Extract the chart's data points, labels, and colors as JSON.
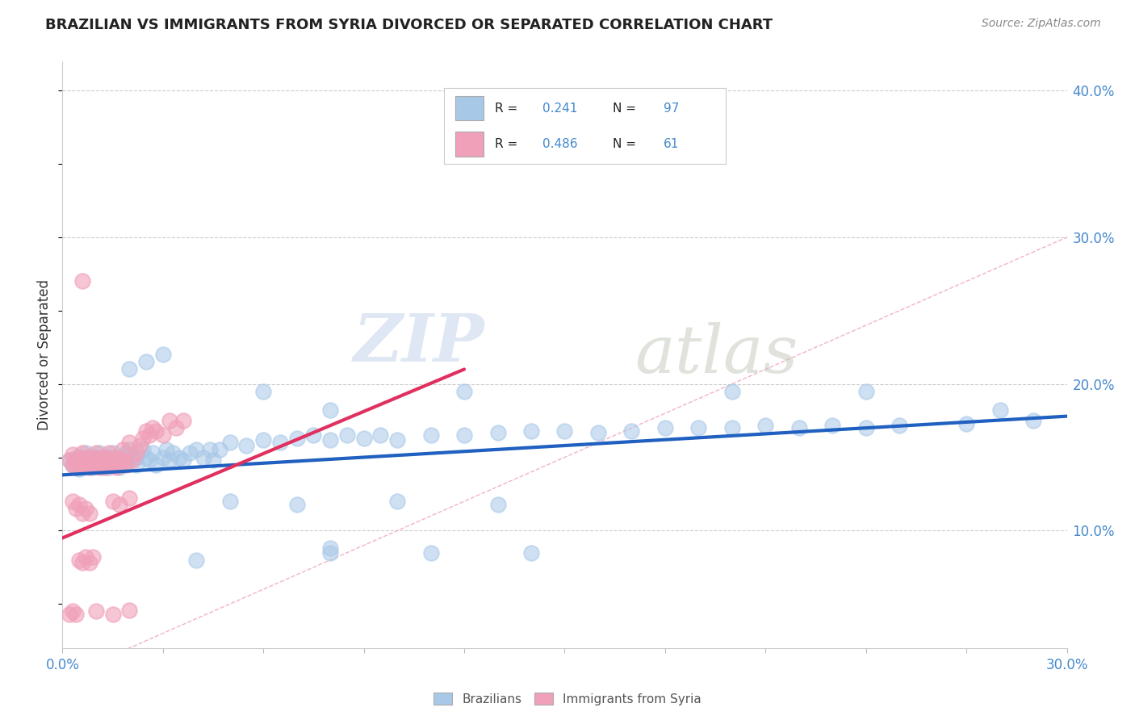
{
  "title": "BRAZILIAN VS IMMIGRANTS FROM SYRIA DIVORCED OR SEPARATED CORRELATION CHART",
  "source": "Source: ZipAtlas.com",
  "xlim": [
    0.0,
    0.3
  ],
  "ylim": [
    0.02,
    0.42
  ],
  "legend1_R": "0.241",
  "legend1_N": "97",
  "legend2_R": "0.486",
  "legend2_N": "61",
  "watermark_zip": "ZIP",
  "watermark_atlas": "atlas",
  "blue_color": "#a8c8e8",
  "pink_color": "#f0a0b8",
  "blue_line_color": "#2060c0",
  "pink_line_color": "#e03060",
  "diag_line_color": "#f0a0b8",
  "ylabel_text": "Divorced or Separated",
  "blue_scatter": [
    [
      0.002,
      0.148
    ],
    [
      0.003,
      0.145
    ],
    [
      0.004,
      0.143
    ],
    [
      0.004,
      0.15
    ],
    [
      0.005,
      0.148
    ],
    [
      0.005,
      0.142
    ],
    [
      0.006,
      0.15
    ],
    [
      0.006,
      0.145
    ],
    [
      0.007,
      0.148
    ],
    [
      0.007,
      0.153
    ],
    [
      0.008,
      0.145
    ],
    [
      0.008,
      0.15
    ],
    [
      0.009,
      0.148
    ],
    [
      0.009,
      0.143
    ],
    [
      0.01,
      0.15
    ],
    [
      0.01,
      0.145
    ],
    [
      0.011,
      0.148
    ],
    [
      0.011,
      0.153
    ],
    [
      0.012,
      0.143
    ],
    [
      0.012,
      0.15
    ],
    [
      0.013,
      0.148
    ],
    [
      0.013,
      0.145
    ],
    [
      0.014,
      0.15
    ],
    [
      0.014,
      0.143
    ],
    [
      0.015,
      0.148
    ],
    [
      0.015,
      0.153
    ],
    [
      0.016,
      0.145
    ],
    [
      0.016,
      0.15
    ],
    [
      0.017,
      0.148
    ],
    [
      0.017,
      0.143
    ],
    [
      0.018,
      0.15
    ],
    [
      0.018,
      0.145
    ],
    [
      0.019,
      0.148
    ],
    [
      0.019,
      0.153
    ],
    [
      0.02,
      0.155
    ],
    [
      0.02,
      0.148
    ],
    [
      0.022,
      0.15
    ],
    [
      0.022,
      0.145
    ],
    [
      0.024,
      0.155
    ],
    [
      0.025,
      0.15
    ],
    [
      0.026,
      0.148
    ],
    [
      0.027,
      0.153
    ],
    [
      0.028,
      0.145
    ],
    [
      0.03,
      0.15
    ],
    [
      0.031,
      0.155
    ],
    [
      0.032,
      0.148
    ],
    [
      0.033,
      0.153
    ],
    [
      0.035,
      0.15
    ],
    [
      0.036,
      0.148
    ],
    [
      0.038,
      0.153
    ],
    [
      0.04,
      0.155
    ],
    [
      0.042,
      0.15
    ],
    [
      0.044,
      0.155
    ],
    [
      0.045,
      0.148
    ],
    [
      0.047,
      0.155
    ],
    [
      0.05,
      0.16
    ],
    [
      0.055,
      0.158
    ],
    [
      0.06,
      0.162
    ],
    [
      0.065,
      0.16
    ],
    [
      0.07,
      0.163
    ],
    [
      0.075,
      0.165
    ],
    [
      0.08,
      0.162
    ],
    [
      0.085,
      0.165
    ],
    [
      0.09,
      0.163
    ],
    [
      0.095,
      0.165
    ],
    [
      0.1,
      0.162
    ],
    [
      0.11,
      0.165
    ],
    [
      0.12,
      0.165
    ],
    [
      0.13,
      0.167
    ],
    [
      0.14,
      0.168
    ],
    [
      0.15,
      0.168
    ],
    [
      0.16,
      0.167
    ],
    [
      0.17,
      0.168
    ],
    [
      0.18,
      0.17
    ],
    [
      0.19,
      0.17
    ],
    [
      0.2,
      0.17
    ],
    [
      0.21,
      0.172
    ],
    [
      0.22,
      0.17
    ],
    [
      0.23,
      0.172
    ],
    [
      0.24,
      0.17
    ],
    [
      0.25,
      0.172
    ],
    [
      0.27,
      0.173
    ],
    [
      0.29,
      0.175
    ],
    [
      0.02,
      0.21
    ],
    [
      0.025,
      0.215
    ],
    [
      0.03,
      0.22
    ],
    [
      0.06,
      0.195
    ],
    [
      0.12,
      0.195
    ],
    [
      0.2,
      0.195
    ],
    [
      0.24,
      0.195
    ],
    [
      0.05,
      0.12
    ],
    [
      0.07,
      0.118
    ],
    [
      0.1,
      0.12
    ],
    [
      0.13,
      0.118
    ],
    [
      0.04,
      0.08
    ],
    [
      0.08,
      0.085
    ],
    [
      0.14,
      0.085
    ],
    [
      0.08,
      0.088
    ],
    [
      0.11,
      0.085
    ],
    [
      0.08,
      0.182
    ],
    [
      0.28,
      0.182
    ]
  ],
  "pink_scatter": [
    [
      0.002,
      0.148
    ],
    [
      0.003,
      0.145
    ],
    [
      0.003,
      0.152
    ],
    [
      0.004,
      0.148
    ],
    [
      0.004,
      0.143
    ],
    [
      0.005,
      0.15
    ],
    [
      0.005,
      0.145
    ],
    [
      0.006,
      0.148
    ],
    [
      0.006,
      0.153
    ],
    [
      0.007,
      0.145
    ],
    [
      0.007,
      0.15
    ],
    [
      0.008,
      0.148
    ],
    [
      0.008,
      0.143
    ],
    [
      0.009,
      0.15
    ],
    [
      0.009,
      0.145
    ],
    [
      0.01,
      0.148
    ],
    [
      0.01,
      0.153
    ],
    [
      0.011,
      0.143
    ],
    [
      0.011,
      0.15
    ],
    [
      0.012,
      0.148
    ],
    [
      0.012,
      0.145
    ],
    [
      0.013,
      0.15
    ],
    [
      0.013,
      0.143
    ],
    [
      0.014,
      0.148
    ],
    [
      0.014,
      0.153
    ],
    [
      0.015,
      0.145
    ],
    [
      0.015,
      0.15
    ],
    [
      0.016,
      0.148
    ],
    [
      0.016,
      0.143
    ],
    [
      0.017,
      0.15
    ],
    [
      0.017,
      0.145
    ],
    [
      0.018,
      0.148
    ],
    [
      0.018,
      0.155
    ],
    [
      0.019,
      0.145
    ],
    [
      0.02,
      0.16
    ],
    [
      0.021,
      0.148
    ],
    [
      0.022,
      0.153
    ],
    [
      0.023,
      0.158
    ],
    [
      0.024,
      0.163
    ],
    [
      0.025,
      0.168
    ],
    [
      0.026,
      0.165
    ],
    [
      0.027,
      0.17
    ],
    [
      0.028,
      0.168
    ],
    [
      0.03,
      0.165
    ],
    [
      0.032,
      0.175
    ],
    [
      0.034,
      0.17
    ],
    [
      0.036,
      0.175
    ],
    [
      0.003,
      0.12
    ],
    [
      0.004,
      0.115
    ],
    [
      0.005,
      0.118
    ],
    [
      0.006,
      0.112
    ],
    [
      0.007,
      0.115
    ],
    [
      0.008,
      0.112
    ],
    [
      0.015,
      0.12
    ],
    [
      0.017,
      0.118
    ],
    [
      0.02,
      0.122
    ],
    [
      0.005,
      0.08
    ],
    [
      0.006,
      0.078
    ],
    [
      0.007,
      0.082
    ],
    [
      0.008,
      0.078
    ],
    [
      0.009,
      0.082
    ],
    [
      0.006,
      0.27
    ],
    [
      0.002,
      0.043
    ],
    [
      0.003,
      0.045
    ],
    [
      0.004,
      0.043
    ],
    [
      0.01,
      0.045
    ],
    [
      0.015,
      0.043
    ],
    [
      0.02,
      0.046
    ]
  ],
  "blue_line": [
    [
      0.0,
      0.138
    ],
    [
      0.3,
      0.178
    ]
  ],
  "pink_line": [
    [
      0.0,
      0.095
    ],
    [
      0.12,
      0.21
    ]
  ],
  "diag_line": [
    [
      0.0,
      0.0
    ],
    [
      0.42,
      0.42
    ]
  ]
}
